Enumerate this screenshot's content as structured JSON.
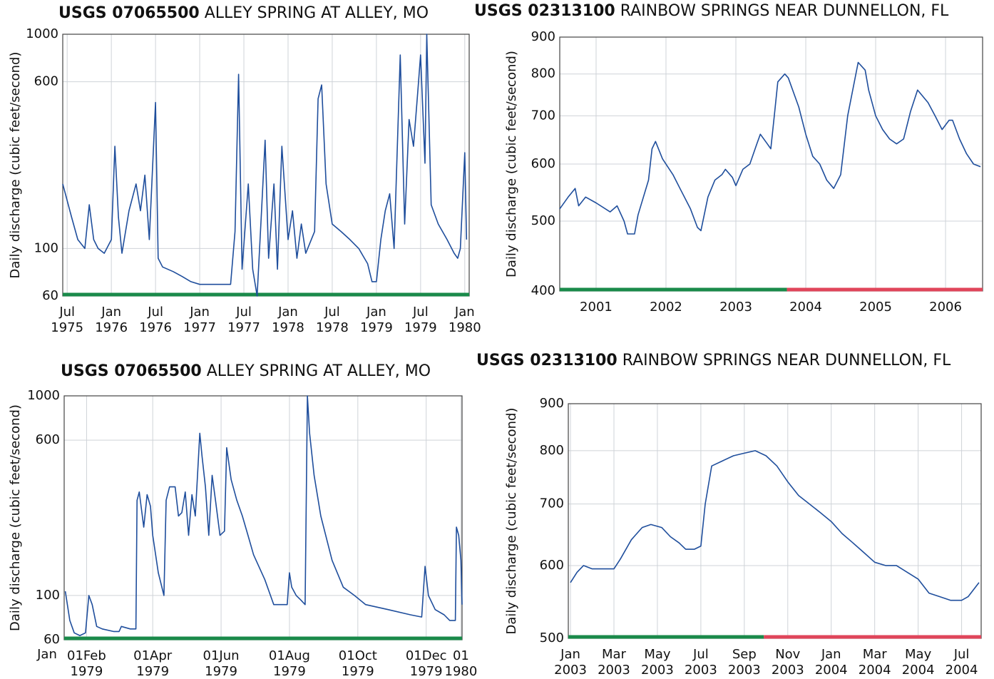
{
  "chart_data": [
    {
      "type": "line",
      "site_id": "USGS 07065500",
      "site_name": "ALLEY SPRING AT ALLEY, MO",
      "y_label": "Daily discharge (cubic feet/second)",
      "log_scale": true,
      "grid": true,
      "color": "#1f4e9c",
      "xlim": [
        1975.45,
        1980.05
      ],
      "ylim": [
        60,
        1000
      ],
      "xticks": [
        {
          "value": 1975.5,
          "label": "Jul 1975"
        },
        {
          "value": 1976.0,
          "label": "Jan 1976"
        },
        {
          "value": 1976.5,
          "label": "Jul 1976"
        },
        {
          "value": 1977.0,
          "label": "Jan 1977"
        },
        {
          "value": 1977.5,
          "label": "Jul 1977"
        },
        {
          "value": 1978.0,
          "label": "Jan 1978"
        },
        {
          "value": 1978.5,
          "label": "Jul 1978"
        },
        {
          "value": 1979.0,
          "label": "Jan 1979"
        },
        {
          "value": 1979.5,
          "label": "Jul 1979"
        },
        {
          "value": 1980.0,
          "label": "Jan 1980"
        }
      ],
      "yticks": [
        60,
        100,
        600,
        1000
      ],
      "bands": [
        {
          "color": "#1a8a4a",
          "x": [
            1975.45,
            1980.05
          ]
        }
      ],
      "x": [
        1975.45,
        1975.55,
        1975.62,
        1975.7,
        1975.75,
        1975.8,
        1975.85,
        1975.92,
        1976.0,
        1976.04,
        1976.08,
        1976.12,
        1976.2,
        1976.28,
        1976.33,
        1976.38,
        1976.43,
        1976.5,
        1976.53,
        1976.58,
        1976.7,
        1976.8,
        1976.9,
        1977.0,
        1977.15,
        1977.35,
        1977.4,
        1977.44,
        1977.48,
        1977.55,
        1977.6,
        1977.65,
        1977.7,
        1977.74,
        1977.78,
        1977.84,
        1977.88,
        1977.93,
        1978.0,
        1978.05,
        1978.1,
        1978.15,
        1978.2,
        1978.3,
        1978.34,
        1978.38,
        1978.43,
        1978.5,
        1978.6,
        1978.7,
        1978.8,
        1978.9,
        1978.95,
        1979.0,
        1979.05,
        1979.1,
        1979.15,
        1979.2,
        1979.27,
        1979.32,
        1979.37,
        1979.42,
        1979.47,
        1979.5,
        1979.55,
        1979.57,
        1979.62,
        1979.7,
        1979.8,
        1979.88,
        1979.92,
        1979.95,
        1980.0,
        1980.02
      ],
      "values": [
        200,
        140,
        110,
        100,
        160,
        110,
        100,
        95,
        110,
        300,
        140,
        95,
        150,
        200,
        150,
        220,
        110,
        480,
        90,
        82,
        78,
        74,
        70,
        68,
        68,
        68,
        120,
        650,
        80,
        200,
        80,
        60,
        150,
        320,
        90,
        200,
        80,
        300,
        110,
        150,
        90,
        130,
        95,
        120,
        500,
        580,
        200,
        130,
        120,
        110,
        100,
        85,
        70,
        70,
        110,
        150,
        180,
        100,
        800,
        130,
        400,
        300,
        550,
        800,
        250,
        1000,
        160,
        130,
        110,
        95,
        90,
        100,
        280,
        110
      ]
    },
    {
      "type": "line",
      "site_id": "USGS 02313100",
      "site_name": "RAINBOW SPRINGS NEAR DUNNELLON, FL",
      "y_label": "Daily discharge (cubic feet/second)",
      "log_scale": true,
      "grid": true,
      "color": "#1f4e9c",
      "xlim": [
        2000.48,
        2006.53
      ],
      "ylim": [
        400,
        900
      ],
      "xticks": [
        {
          "value": 2001,
          "label": "2001"
        },
        {
          "value": 2002,
          "label": "2002"
        },
        {
          "value": 2003,
          "label": "2003"
        },
        {
          "value": 2004,
          "label": "2004"
        },
        {
          "value": 2005,
          "label": "2005"
        },
        {
          "value": 2006,
          "label": "2006"
        }
      ],
      "yticks": [
        400,
        500,
        600,
        700,
        800,
        900
      ],
      "bands": [
        {
          "color": "#1a8a4a",
          "x": [
            2000.48,
            2003.73
          ]
        },
        {
          "color": "#e0455a",
          "x": [
            2003.73,
            2006.53
          ]
        }
      ],
      "x": [
        2000.48,
        2000.6,
        2000.7,
        2000.75,
        2000.85,
        2001.0,
        2001.2,
        2001.3,
        2001.4,
        2001.45,
        2001.55,
        2001.6,
        2001.75,
        2001.8,
        2001.85,
        2001.95,
        2002.1,
        2002.2,
        2002.35,
        2002.45,
        2002.5,
        2002.6,
        2002.7,
        2002.8,
        2002.85,
        2002.95,
        2003.0,
        2003.1,
        2003.2,
        2003.3,
        2003.35,
        2003.45,
        2003.5,
        2003.55,
        2003.6,
        2003.7,
        2003.75,
        2003.9,
        2004.0,
        2004.1,
        2004.2,
        2004.3,
        2004.4,
        2004.5,
        2004.6,
        2004.75,
        2004.85,
        2004.9,
        2005.0,
        2005.1,
        2005.2,
        2005.3,
        2005.4,
        2005.5,
        2005.6,
        2005.75,
        2005.85,
        2005.95,
        2006.05,
        2006.1,
        2006.2,
        2006.3,
        2006.4,
        2006.5
      ],
      "values": [
        520,
        540,
        555,
        525,
        540,
        530,
        515,
        525,
        500,
        480,
        480,
        510,
        570,
        630,
        645,
        610,
        580,
        555,
        520,
        490,
        485,
        540,
        570,
        580,
        590,
        575,
        560,
        590,
        600,
        640,
        660,
        640,
        630,
        700,
        780,
        800,
        790,
        720,
        660,
        615,
        600,
        570,
        555,
        580,
        700,
        830,
        810,
        760,
        700,
        670,
        650,
        640,
        650,
        710,
        760,
        730,
        700,
        670,
        690,
        690,
        650,
        620,
        600,
        595
      ]
    },
    {
      "type": "line",
      "site_id": "USGS 07065500",
      "site_name": "ALLEY SPRING AT ALLEY, MO",
      "y_label": "Daily discharge (cubic feet/second)",
      "log_scale": true,
      "grid": true,
      "color": "#1f4e9c",
      "x_start_label": "Jan",
      "xlim": [
        11,
        366
      ],
      "ylim": [
        60,
        1000
      ],
      "xticks": [
        {
          "value": 31,
          "label": "01Feb 1979"
        },
        {
          "value": 90,
          "label": "01Apr 1979"
        },
        {
          "value": 151,
          "label": "01Jun 1979"
        },
        {
          "value": 212,
          "label": "01Aug 1979"
        },
        {
          "value": 273,
          "label": "01Oct 1979"
        },
        {
          "value": 334,
          "label": "01Dec 1979"
        },
        {
          "value": 365,
          "label": "01 1980"
        }
      ],
      "yticks": [
        60,
        100,
        600,
        1000
      ],
      "bands": [
        {
          "color": "#1a8a4a",
          "x": [
            11,
            366
          ]
        }
      ],
      "x": [
        12,
        16,
        20,
        25,
        30,
        33,
        36,
        40,
        45,
        55,
        60,
        62,
        70,
        75,
        76,
        78,
        82,
        85,
        88,
        90,
        95,
        100,
        102,
        105,
        110,
        113,
        116,
        119,
        122,
        125,
        128,
        132,
        134,
        137,
        140,
        143,
        146,
        150,
        154,
        156,
        160,
        165,
        170,
        175,
        180,
        190,
        198,
        205,
        210,
        212,
        214,
        218,
        222,
        226,
        228,
        230,
        234,
        240,
        250,
        260,
        270,
        280,
        300,
        320,
        330,
        333,
        336,
        342,
        350,
        355,
        360,
        361,
        363,
        365,
        366
      ],
      "values": [
        105,
        75,
        65,
        63,
        65,
        100,
        90,
        70,
        68,
        66,
        66,
        70,
        68,
        68,
        300,
        330,
        220,
        320,
        280,
        200,
        130,
        100,
        300,
        350,
        350,
        250,
        260,
        330,
        200,
        320,
        250,
        650,
        500,
        350,
        200,
        400,
        300,
        200,
        210,
        550,
        380,
        300,
        250,
        200,
        160,
        120,
        90,
        90,
        90,
        130,
        110,
        100,
        95,
        90,
        1000,
        650,
        400,
        250,
        150,
        110,
        100,
        90,
        85,
        80,
        78,
        140,
        100,
        85,
        80,
        75,
        75,
        220,
        200,
        150,
        90
      ]
    },
    {
      "type": "line",
      "site_id": "USGS 02313100",
      "site_name": "RAINBOW SPRINGS NEAR DUNNELLON, FL",
      "y_label": "Daily discharge (cubic feet/second)",
      "log_scale": true,
      "grid": true,
      "color": "#1f4e9c",
      "xlim": [
        -0.1,
        18.9
      ],
      "ylim": [
        500,
        900
      ],
      "xticks": [
        {
          "value": 0,
          "label": "Jan 2003"
        },
        {
          "value": 2,
          "label": "Mar 2003"
        },
        {
          "value": 4,
          "label": "May 2003"
        },
        {
          "value": 6,
          "label": "Jul 2003"
        },
        {
          "value": 8,
          "label": "Sep 2003"
        },
        {
          "value": 10,
          "label": "Nov 2003"
        },
        {
          "value": 12,
          "label": "Jan 2004"
        },
        {
          "value": 14,
          "label": "Mar 2004"
        },
        {
          "value": 16,
          "label": "May 2004"
        },
        {
          "value": 18,
          "label": "Jul 2004"
        }
      ],
      "yticks": [
        500,
        600,
        700,
        800,
        900
      ],
      "bands": [
        {
          "color": "#1a8a4a",
          "x": [
            -0.1,
            8.9
          ]
        },
        {
          "color": "#e0455a",
          "x": [
            8.9,
            18.9
          ]
        }
      ],
      "x": [
        0,
        0.3,
        0.6,
        1,
        1.5,
        2,
        2.3,
        2.8,
        3.3,
        3.7,
        4.2,
        4.6,
        5,
        5.3,
        5.7,
        6,
        6.2,
        6.5,
        7,
        7.5,
        8,
        8.5,
        9,
        9.5,
        10,
        10.5,
        11,
        11.5,
        12,
        12.5,
        13,
        13.5,
        14,
        14.5,
        15,
        15.5,
        16,
        16.5,
        17,
        17.5,
        18,
        18.3,
        18.8
      ],
      "values": [
        575,
        590,
        600,
        595,
        595,
        595,
        610,
        640,
        660,
        665,
        660,
        645,
        635,
        625,
        625,
        630,
        700,
        770,
        780,
        790,
        795,
        800,
        790,
        770,
        740,
        715,
        700,
        685,
        670,
        650,
        635,
        620,
        605,
        600,
        600,
        590,
        580,
        560,
        555,
        550,
        550,
        555,
        575
      ]
    }
  ]
}
